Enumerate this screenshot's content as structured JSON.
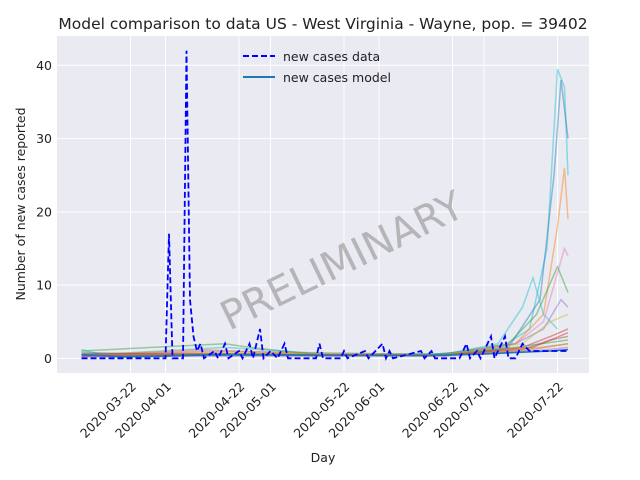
{
  "chart_data": {
    "type": "line",
    "title": "Model comparison to data US - West Virginia - Wayne, pop. = 39402",
    "xlabel": "Day",
    "ylabel": "Number of new cases reported",
    "x_ticks": [
      "2020-03-22",
      "2020-04-01",
      "2020-04-22",
      "2020-05-01",
      "2020-05-22",
      "2020-06-01",
      "2020-06-22",
      "2020-07-01",
      "2020-07-22"
    ],
    "y_ticks": [
      0,
      10,
      20,
      30,
      40
    ],
    "x_range": [
      "2020-03-01",
      "2020-07-31"
    ],
    "ylim": [
      -2,
      44
    ],
    "grid": true,
    "background": "#eaeaf2",
    "legend": {
      "placement": "top-center",
      "entries": [
        {
          "label": "new cases data",
          "style": "dashed",
          "color": "#0000ff"
        },
        {
          "label": "new cases model",
          "style": "solid",
          "color": "#1f77b4"
        }
      ]
    },
    "watermark": "PRELIMINARY",
    "series": [
      {
        "name": "new cases data",
        "color": "#0000ff",
        "style": "dashed",
        "points": [
          [
            "2020-03-08",
            0
          ],
          [
            "2020-03-20",
            0
          ],
          [
            "2020-03-31",
            0
          ],
          [
            "2020-04-01",
            0
          ],
          [
            "2020-04-02",
            17
          ],
          [
            "2020-04-03",
            0
          ],
          [
            "2020-04-06",
            0
          ],
          [
            "2020-04-07",
            42
          ],
          [
            "2020-04-08",
            8
          ],
          [
            "2020-04-09",
            3
          ],
          [
            "2020-04-10",
            1
          ],
          [
            "2020-04-11",
            2
          ],
          [
            "2020-04-12",
            0
          ],
          [
            "2020-04-15",
            1
          ],
          [
            "2020-04-16",
            0
          ],
          [
            "2020-04-18",
            2
          ],
          [
            "2020-04-19",
            0
          ],
          [
            "2020-04-22",
            1
          ],
          [
            "2020-04-23",
            0
          ],
          [
            "2020-04-25",
            2
          ],
          [
            "2020-04-26",
            0
          ],
          [
            "2020-04-28",
            4
          ],
          [
            "2020-04-29",
            0
          ],
          [
            "2020-05-01",
            1
          ],
          [
            "2020-05-03",
            0
          ],
          [
            "2020-05-05",
            2
          ],
          [
            "2020-05-06",
            0
          ],
          [
            "2020-05-14",
            0
          ],
          [
            "2020-05-15",
            2
          ],
          [
            "2020-05-16",
            0
          ],
          [
            "2020-05-21",
            0
          ],
          [
            "2020-05-22",
            1
          ],
          [
            "2020-05-23",
            0
          ],
          [
            "2020-05-28",
            1
          ],
          [
            "2020-05-29",
            0
          ],
          [
            "2020-06-02",
            2
          ],
          [
            "2020-06-03",
            0
          ],
          [
            "2020-06-04",
            1
          ],
          [
            "2020-06-05",
            0
          ],
          [
            "2020-06-13",
            1
          ],
          [
            "2020-06-14",
            0
          ],
          [
            "2020-06-16",
            1
          ],
          [
            "2020-06-17",
            0
          ],
          [
            "2020-06-24",
            0
          ],
          [
            "2020-06-26",
            2
          ],
          [
            "2020-06-27",
            0
          ],
          [
            "2020-06-29",
            1
          ],
          [
            "2020-06-30",
            0
          ],
          [
            "2020-07-03",
            3
          ],
          [
            "2020-07-04",
            0
          ],
          [
            "2020-07-07",
            3
          ],
          [
            "2020-07-08",
            0
          ],
          [
            "2020-07-10",
            0
          ],
          [
            "2020-07-11",
            1
          ],
          [
            "2020-07-12",
            2
          ],
          [
            "2020-07-14",
            1
          ],
          [
            "2020-07-18",
            1
          ],
          [
            "2020-07-22",
            1
          ],
          [
            "2020-07-25",
            1
          ]
        ]
      },
      {
        "name": "new cases model",
        "color": "#1f77b4",
        "style": "solid",
        "points": [
          [
            "2020-03-08",
            0.5
          ],
          [
            "2020-03-20",
            0.2
          ],
          [
            "2020-04-01",
            0.3
          ],
          [
            "2020-04-15",
            0.5
          ],
          [
            "2020-05-01",
            0.5
          ],
          [
            "2020-05-15",
            0.4
          ],
          [
            "2020-06-01",
            0.4
          ],
          [
            "2020-06-15",
            0.4
          ],
          [
            "2020-07-01",
            0.6
          ],
          [
            "2020-07-10",
            0.8
          ],
          [
            "2020-07-20",
            1.0
          ],
          [
            "2020-07-25",
            1.2
          ]
        ]
      }
    ],
    "ensemble": [
      {
        "color": "#17becf",
        "points": [
          [
            "2020-03-08",
            1.2
          ],
          [
            "2020-03-16",
            0.3
          ],
          [
            "2020-04-10",
            0.5
          ],
          [
            "2020-05-10",
            0.4
          ],
          [
            "2020-06-15",
            0.5
          ],
          [
            "2020-07-05",
            1.2
          ],
          [
            "2020-07-14",
            4
          ],
          [
            "2020-07-19",
            15
          ],
          [
            "2020-07-22",
            39.5
          ],
          [
            "2020-07-24",
            37
          ],
          [
            "2020-07-25",
            25
          ]
        ]
      },
      {
        "color": "#1f77b4",
        "points": [
          [
            "2020-03-08",
            0.8
          ],
          [
            "2020-04-10",
            0.4
          ],
          [
            "2020-06-15",
            0.5
          ],
          [
            "2020-07-08",
            1.5
          ],
          [
            "2020-07-17",
            8
          ],
          [
            "2020-07-21",
            25
          ],
          [
            "2020-07-23",
            38
          ],
          [
            "2020-07-25",
            30
          ]
        ]
      },
      {
        "color": "#ff7f0e",
        "points": [
          [
            "2020-03-08",
            0.5
          ],
          [
            "2020-04-10",
            0.5
          ],
          [
            "2020-06-20",
            0.6
          ],
          [
            "2020-07-10",
            2
          ],
          [
            "2020-07-18",
            6
          ],
          [
            "2020-07-22",
            18
          ],
          [
            "2020-07-24",
            26
          ],
          [
            "2020-07-25",
            19
          ]
        ]
      },
      {
        "color": "#2ca02c",
        "points": [
          [
            "2020-03-08",
            0.6
          ],
          [
            "2020-04-15",
            0.6
          ],
          [
            "2020-06-20",
            0.6
          ],
          [
            "2020-07-08",
            2
          ],
          [
            "2020-07-16",
            6
          ],
          [
            "2020-07-22",
            12.5
          ],
          [
            "2020-07-25",
            9
          ]
        ]
      },
      {
        "color": "#17becf",
        "points": [
          [
            "2020-03-08",
            0.4
          ],
          [
            "2020-04-18",
            1.5
          ],
          [
            "2020-05-20",
            0.5
          ],
          [
            "2020-06-20",
            0.6
          ],
          [
            "2020-07-05",
            2
          ],
          [
            "2020-07-12",
            7
          ],
          [
            "2020-07-15",
            11
          ],
          [
            "2020-07-18",
            6
          ],
          [
            "2020-07-22",
            4
          ]
        ]
      },
      {
        "color": "#e377c2",
        "points": [
          [
            "2020-03-08",
            0.5
          ],
          [
            "2020-04-20",
            0.5
          ],
          [
            "2020-06-20",
            0.5
          ],
          [
            "2020-07-10",
            2
          ],
          [
            "2020-07-18",
            5
          ],
          [
            "2020-07-24",
            15
          ],
          [
            "2020-07-25",
            14
          ]
        ]
      },
      {
        "color": "#9467bd",
        "points": [
          [
            "2020-03-08",
            0.4
          ],
          [
            "2020-04-12",
            1
          ],
          [
            "2020-06-20",
            0.5
          ],
          [
            "2020-07-10",
            2
          ],
          [
            "2020-07-18",
            4
          ],
          [
            "2020-07-23",
            8
          ],
          [
            "2020-07-25",
            7
          ]
        ]
      },
      {
        "color": "#bcbd22",
        "points": [
          [
            "2020-03-08",
            0.3
          ],
          [
            "2020-04-15",
            0.8
          ],
          [
            "2020-06-20",
            0.5
          ],
          [
            "2020-07-12",
            2
          ],
          [
            "2020-07-20",
            5
          ],
          [
            "2020-07-25",
            6
          ]
        ]
      },
      {
        "color": "#d62728",
        "points": [
          [
            "2020-03-08",
            0.3
          ],
          [
            "2020-04-10",
            0.5
          ],
          [
            "2020-06-20",
            0.4
          ],
          [
            "2020-07-12",
            1.5
          ],
          [
            "2020-07-20",
            3
          ],
          [
            "2020-07-25",
            4
          ]
        ]
      },
      {
        "color": "#8c564b",
        "points": [
          [
            "2020-03-08",
            0.3
          ],
          [
            "2020-04-10",
            0.5
          ],
          [
            "2020-06-20",
            0.4
          ],
          [
            "2020-07-12",
            1.2
          ],
          [
            "2020-07-20",
            2.5
          ],
          [
            "2020-07-25",
            3
          ]
        ]
      },
      {
        "color": "#7f7f7f",
        "points": [
          [
            "2020-03-08",
            0.3
          ],
          [
            "2020-04-10",
            0.4
          ],
          [
            "2020-06-20",
            0.4
          ],
          [
            "2020-07-12",
            1
          ],
          [
            "2020-07-25",
            2
          ]
        ]
      },
      {
        "color": "#2ca02c",
        "points": [
          [
            "2020-03-08",
            1
          ],
          [
            "2020-04-18",
            2
          ],
          [
            "2020-04-25",
            1.5
          ],
          [
            "2020-05-15",
            0.5
          ],
          [
            "2020-06-20",
            0.5
          ],
          [
            "2020-07-10",
            1.5
          ],
          [
            "2020-07-25",
            2.5
          ]
        ]
      },
      {
        "color": "#ff7f0e",
        "points": [
          [
            "2020-03-08",
            0.4
          ],
          [
            "2020-04-12",
            1.2
          ],
          [
            "2020-05-15",
            0.5
          ],
          [
            "2020-06-20",
            0.5
          ],
          [
            "2020-07-12",
            1.2
          ],
          [
            "2020-07-25",
            2
          ]
        ]
      },
      {
        "color": "#9467bd",
        "points": [
          [
            "2020-03-08",
            0.2
          ],
          [
            "2020-04-10",
            0.3
          ],
          [
            "2020-06-20",
            0.3
          ],
          [
            "2020-07-15",
            1
          ],
          [
            "2020-07-25",
            1.5
          ]
        ]
      },
      {
        "color": "#d62728",
        "points": [
          [
            "2020-03-08",
            0.6
          ],
          [
            "2020-04-08",
            0.7
          ],
          [
            "2020-05-10",
            0.5
          ],
          [
            "2020-06-20",
            0.4
          ],
          [
            "2020-07-15",
            1.5
          ],
          [
            "2020-07-25",
            3.5
          ]
        ]
      }
    ]
  }
}
